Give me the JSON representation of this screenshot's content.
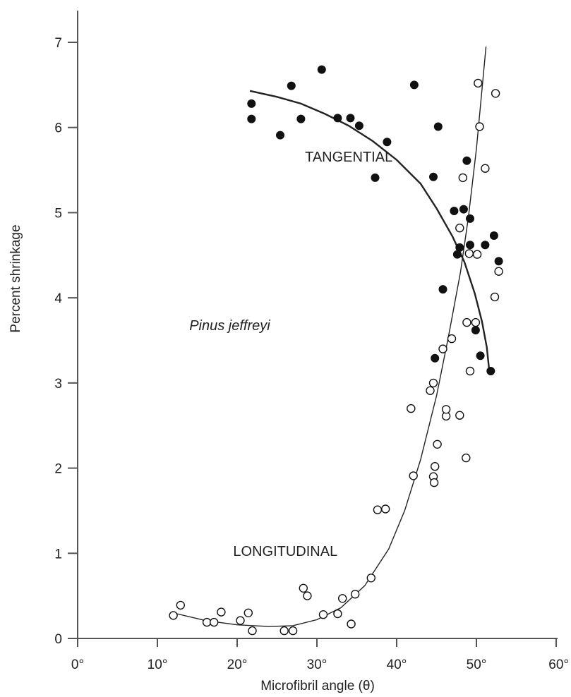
{
  "chart_data": {
    "type": "scatter",
    "title": "",
    "xlabel": "Microfibril angle (θ)",
    "ylabel": "Percent shrinkage",
    "xlim": [
      0,
      60
    ],
    "ylim": [
      0,
      7
    ],
    "x_ticks": [
      0,
      10,
      20,
      30,
      40,
      50,
      60
    ],
    "x_tick_labels": [
      "0°",
      "10°",
      "20°",
      "30°",
      "40°",
      "50°",
      "60°"
    ],
    "y_ticks": [
      0,
      1,
      2,
      3,
      4,
      5,
      6,
      7
    ],
    "y_tick_labels": [
      "0",
      "1",
      "2",
      "3",
      "4",
      "5",
      "6",
      "7"
    ],
    "grid": false,
    "annotations": [
      {
        "text": "TANGENTIAL",
        "x": 28.5,
        "y": 5.6,
        "style": "normal"
      },
      {
        "text": "Pinus jeffreyi",
        "x": 14,
        "y": 3.62,
        "style": "italic"
      },
      {
        "text": "LONGITUDINAL",
        "x": 19.5,
        "y": 0.97,
        "style": "normal"
      }
    ],
    "series": [
      {
        "marker": "filled-circle",
        "points": [
          [
            21.8,
            6.28
          ],
          [
            21.8,
            6.1
          ],
          [
            25.4,
            5.91
          ],
          [
            26.8,
            6.49
          ],
          [
            28.0,
            6.1
          ],
          [
            30.6,
            6.68
          ],
          [
            32.6,
            6.11
          ],
          [
            34.2,
            6.11
          ],
          [
            35.3,
            6.02
          ],
          [
            37.3,
            5.41
          ],
          [
            38.8,
            5.83
          ],
          [
            42.2,
            6.5
          ],
          [
            44.6,
            5.42
          ],
          [
            45.2,
            6.01
          ],
          [
            47.2,
            5.02
          ],
          [
            48.4,
            5.04
          ],
          [
            48.8,
            5.61
          ],
          [
            49.2,
            4.93
          ],
          [
            47.6,
            4.51
          ],
          [
            47.9,
            4.59
          ],
          [
            49.2,
            4.62
          ],
          [
            51.1,
            4.62
          ],
          [
            52.2,
            4.73
          ],
          [
            52.8,
            4.43
          ],
          [
            45.8,
            4.1
          ],
          [
            49.9,
            3.62
          ],
          [
            44.8,
            3.29
          ],
          [
            50.5,
            3.32
          ],
          [
            51.8,
            3.14
          ]
        ],
        "curve": [
          [
            21.6,
            6.43
          ],
          [
            25,
            6.36
          ],
          [
            28,
            6.28
          ],
          [
            31,
            6.16
          ],
          [
            34,
            6.02
          ],
          [
            37,
            5.84
          ],
          [
            40,
            5.62
          ],
          [
            43,
            5.34
          ],
          [
            45,
            5.05
          ],
          [
            47,
            4.72
          ],
          [
            48.5,
            4.42
          ],
          [
            49.8,
            4.05
          ],
          [
            50.7,
            3.72
          ],
          [
            51.3,
            3.42
          ],
          [
            51.6,
            3.15
          ]
        ]
      },
      {
        "marker": "open-circle",
        "points": [
          [
            12.0,
            0.27
          ],
          [
            12.9,
            0.39
          ],
          [
            16.2,
            0.19
          ],
          [
            17.1,
            0.19
          ],
          [
            18.0,
            0.31
          ],
          [
            20.4,
            0.21
          ],
          [
            21.4,
            0.3
          ],
          [
            21.9,
            0.09
          ],
          [
            25.9,
            0.09
          ],
          [
            27.0,
            0.09
          ],
          [
            28.3,
            0.59
          ],
          [
            28.8,
            0.5
          ],
          [
            30.8,
            0.28
          ],
          [
            32.6,
            0.29
          ],
          [
            33.2,
            0.47
          ],
          [
            34.3,
            0.17
          ],
          [
            34.8,
            0.52
          ],
          [
            36.8,
            0.71
          ],
          [
            37.6,
            1.51
          ],
          [
            38.6,
            1.52
          ],
          [
            41.8,
            2.7
          ],
          [
            42.1,
            1.91
          ],
          [
            44.2,
            2.91
          ],
          [
            44.6,
            3.0
          ],
          [
            44.6,
            1.9
          ],
          [
            44.7,
            1.83
          ],
          [
            44.8,
            2.02
          ],
          [
            45.1,
            2.28
          ],
          [
            45.8,
            3.4
          ],
          [
            46.2,
            2.61
          ],
          [
            46.2,
            2.69
          ],
          [
            46.9,
            3.52
          ],
          [
            47.9,
            2.62
          ],
          [
            48.3,
            5.41
          ],
          [
            48.7,
            2.12
          ],
          [
            48.8,
            3.71
          ],
          [
            47.9,
            4.82
          ],
          [
            49.1,
            4.52
          ],
          [
            49.9,
            3.71
          ],
          [
            49.2,
            3.14
          ],
          [
            50.1,
            4.51
          ],
          [
            50.2,
            6.52
          ],
          [
            50.4,
            6.01
          ],
          [
            51.1,
            5.52
          ],
          [
            52.4,
            6.4
          ],
          [
            52.3,
            4.01
          ],
          [
            52.8,
            4.31
          ]
        ],
        "curve": [
          [
            12.0,
            0.3
          ],
          [
            16,
            0.21
          ],
          [
            20,
            0.16
          ],
          [
            24,
            0.14
          ],
          [
            27,
            0.15
          ],
          [
            30,
            0.22
          ],
          [
            33,
            0.36
          ],
          [
            36,
            0.62
          ],
          [
            39,
            1.05
          ],
          [
            41,
            1.5
          ],
          [
            43,
            2.1
          ],
          [
            45,
            2.85
          ],
          [
            46.5,
            3.55
          ],
          [
            48,
            4.3
          ],
          [
            49,
            4.95
          ],
          [
            50,
            5.75
          ],
          [
            51.2,
            6.95
          ]
        ]
      }
    ]
  }
}
